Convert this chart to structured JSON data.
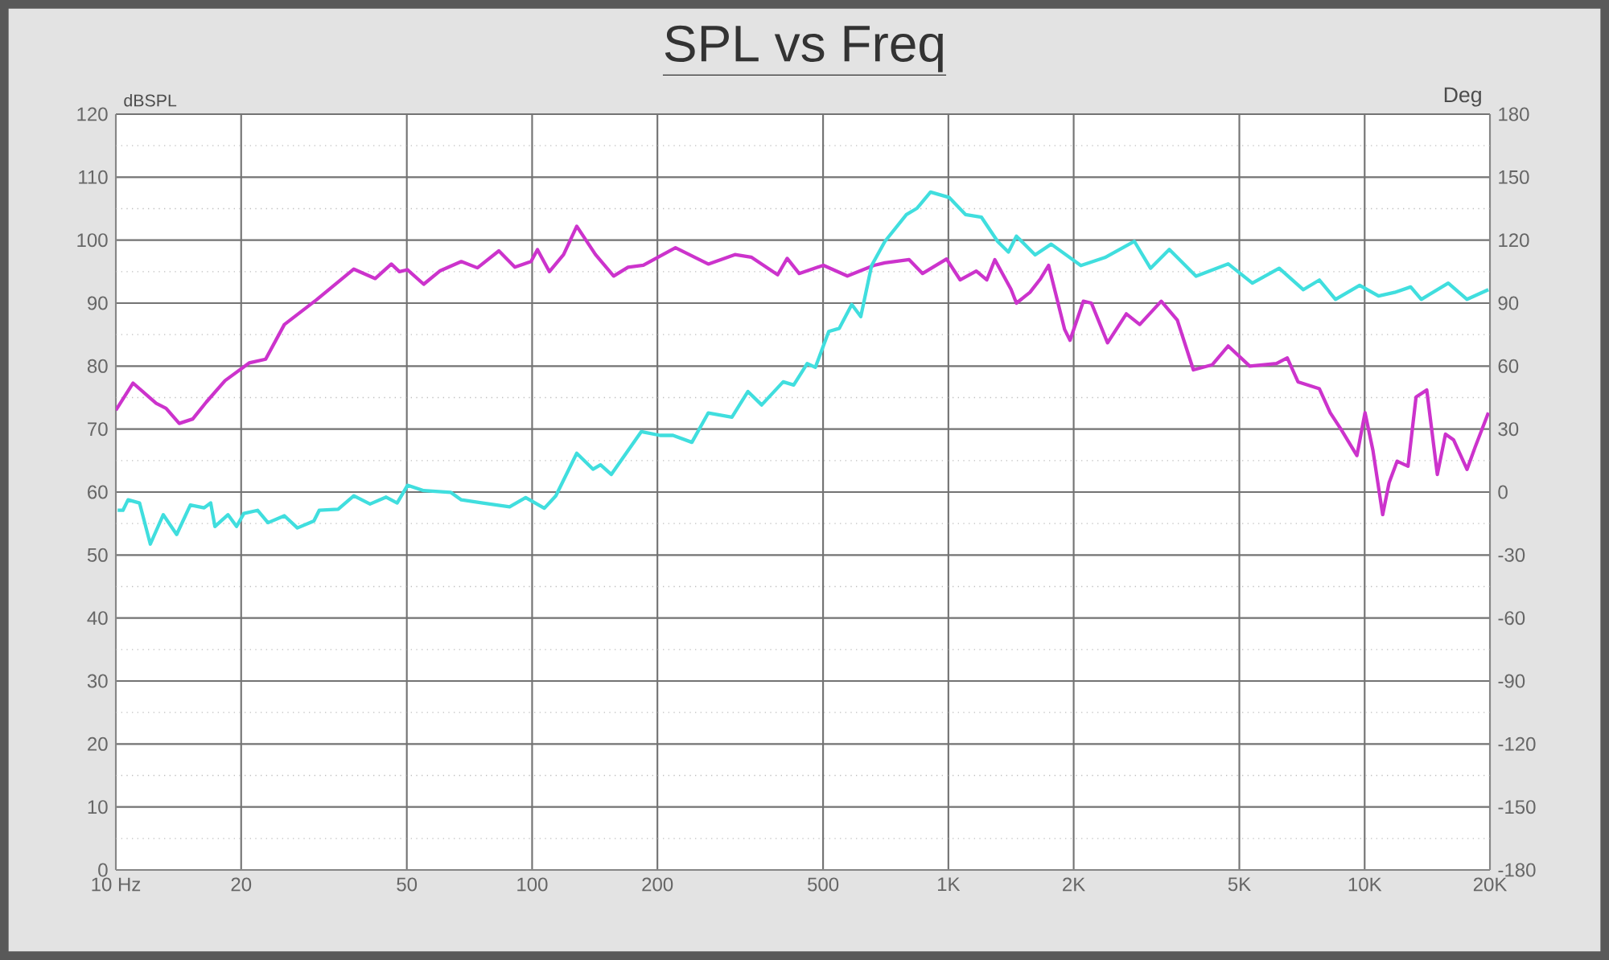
{
  "chart_data": {
    "type": "line",
    "title": "SPL vs Freq",
    "ylabel": "dBSPL",
    "y2label": "Deg",
    "log": "x",
    "grid": true,
    "xlim": [
      10,
      20000
    ],
    "xticks": [
      {
        "value": 10,
        "label": "10 Hz"
      },
      20,
      50,
      100,
      200,
      500,
      {
        "value": 1000,
        "label": "1K"
      },
      {
        "value": 2000,
        "label": "2K"
      },
      {
        "value": 5000,
        "label": "5K"
      },
      {
        "value": 10000,
        "label": "10K"
      },
      {
        "value": 20000,
        "label": "20K"
      }
    ],
    "ylim": [
      0,
      120
    ],
    "yticks": [
      0,
      10,
      20,
      30,
      40,
      50,
      60,
      70,
      80,
      90,
      100,
      110,
      120
    ],
    "y2lim": [
      -180,
      180
    ],
    "y2ticks": [
      -180,
      -150,
      -120,
      -90,
      -60,
      -30,
      0,
      30,
      60,
      90,
      120,
      150,
      180
    ],
    "series": [
      {
        "color": "#cc33cc",
        "axis": "y",
        "x": [
          10,
          11,
          12,
          12.5,
          13.2,
          14.2,
          15.3,
          16.5,
          18.3,
          20.9,
          22.9,
          25.4,
          30.3,
          37.3,
          42,
          45.9,
          48,
          50.2,
          54.9,
          60,
          67.6,
          73.9,
          83.2,
          90.9,
          99.4,
          103,
          110,
          119,
          128,
          142,
          157,
          170,
          185,
          221,
          265,
          307,
          336,
          389,
          410,
          438,
          501,
          572,
          663,
          704,
          805,
          867,
          990,
          1067,
          1167,
          1237,
          1293,
          1414,
          1457,
          1570,
          1666,
          1741,
          1903,
          1960,
          2110,
          2206,
          2412,
          2676,
          2882,
          3246,
          3548,
          3878,
          4301,
          4700,
          5297,
          6139,
          6518,
          6918,
          7787,
          8266,
          8767,
          9582,
          10020,
          10470,
          11050,
          11450,
          11970,
          12710,
          13290,
          14100,
          14950,
          15640,
          16350,
          17620,
          18420,
          19830
        ],
        "values": [
          73.0,
          77.3,
          75.1,
          74.1,
          73.3,
          70.9,
          71.6,
          74.3,
          77.7,
          80.5,
          81.1,
          86.6,
          90.5,
          95.4,
          93.9,
          96.2,
          95.0,
          95.3,
          93.0,
          95.1,
          96.6,
          95.6,
          98.3,
          95.7,
          96.6,
          98.5,
          95.0,
          97.7,
          102.2,
          97.7,
          94.3,
          95.7,
          96.0,
          98.8,
          96.2,
          97.7,
          97.3,
          94.5,
          97.1,
          94.7,
          96.0,
          94.3,
          96.0,
          96.4,
          96.9,
          94.7,
          97.0,
          93.7,
          95.1,
          93.7,
          96.9,
          92.2,
          90.0,
          91.7,
          93.9,
          96.0,
          85.8,
          84.1,
          90.3,
          90.0,
          83.7,
          88.3,
          86.6,
          90.3,
          87.3,
          79.4,
          80.2,
          83.2,
          80.0,
          80.4,
          81.3,
          77.5,
          76.4,
          72.6,
          70.0,
          65.8,
          72.6,
          66.6,
          56.4,
          61.5,
          64.9,
          64.1,
          75.1,
          76.2,
          62.8,
          69.2,
          68.3,
          63.6,
          67.1,
          72.6
        ]
      },
      {
        "color": "#40dede",
        "axis": "y2",
        "x": [
          10.1,
          10.4,
          10.7,
          11.4,
          12.1,
          13,
          14,
          15.1,
          16.3,
          16.9,
          17.3,
          18.6,
          19.5,
          20.3,
          21.9,
          23.2,
          25.4,
          27.3,
          29.9,
          30.8,
          34.2,
          37.3,
          40.8,
          44.6,
          47.4,
          50.2,
          54.9,
          63.7,
          67.6,
          76.1,
          88.3,
          96.5,
          107,
          114,
          128,
          140,
          146,
          155,
          183,
          203,
          218,
          242,
          265,
          302,
          330,
          356,
          401,
          425,
          458,
          479,
          516,
          547,
          586,
          616,
          654,
          704,
          793,
          841,
          906,
          1005,
          1099,
          1201,
          1313,
          1394,
          1457,
          1616,
          1766,
          2081,
          2377,
          2798,
          3059,
          3394,
          3935,
          4700,
          5373,
          6234,
          7125,
          7787,
          8511,
          9728,
          10800,
          11800,
          12900,
          13680,
          15880,
          17620,
          19830
        ],
        "values": [
          -8.7,
          -8.7,
          -3.7,
          -5.2,
          -24.8,
          -10.8,
          -20.2,
          -6.2,
          -7.5,
          -5.2,
          -16.4,
          -10.8,
          -16.4,
          -10.2,
          -8.7,
          -14.6,
          -11.3,
          -17.1,
          -13.8,
          -8.7,
          -8.2,
          -1.8,
          -5.7,
          -2.4,
          -5.2,
          3.2,
          0.7,
          -0.1,
          -3.7,
          -5.2,
          -7.0,
          -2.6,
          -7.7,
          -1.8,
          18.5,
          10.9,
          13.0,
          8.4,
          28.8,
          27.0,
          27.0,
          23.7,
          37.7,
          35.7,
          47.9,
          41.5,
          52.5,
          51.0,
          61.2,
          59.4,
          76.5,
          78.0,
          89.3,
          83.6,
          107.9,
          119.4,
          132.2,
          135.2,
          142.9,
          140.3,
          132.2,
          130.9,
          119.4,
          114.3,
          121.9,
          113.0,
          118.1,
          107.9,
          111.7,
          119.4,
          106.6,
          115.6,
          102.8,
          108.7,
          99.5,
          106.6,
          96.4,
          101.0,
          91.8,
          98.5,
          93.4,
          95.1,
          97.7,
          91.8,
          99.5,
          91.8,
          96.4
        ]
      }
    ]
  }
}
